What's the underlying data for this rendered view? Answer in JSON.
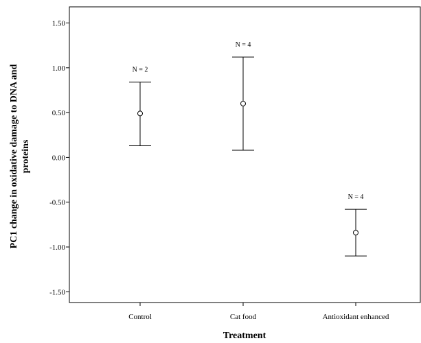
{
  "chart_data": {
    "type": "errorbar",
    "xlabel": "Treatment",
    "ylabel_lines": [
      "PC1 change in oxidative damage to DNA and",
      "proteins"
    ],
    "categories": [
      "Control",
      "Cat food",
      "Antioxidant enhanced"
    ],
    "means": [
      0.49,
      0.6,
      -0.84
    ],
    "lower": [
      0.13,
      0.08,
      -1.1
    ],
    "upper": [
      0.84,
      1.12,
      -0.58
    ],
    "n_labels": [
      "N = 2",
      "N = 4",
      "N = 4"
    ],
    "ylim": [
      -1.62,
      1.68
    ],
    "yticks": [
      1.5,
      1.0,
      0.5,
      0.0,
      -0.5,
      -1.0,
      -1.5
    ],
    "ytick_labels": [
      "1.50",
      "1.00",
      "0.50",
      "0.00",
      "-0.50",
      "-1.00",
      "-1.50"
    ],
    "grid": false,
    "legend": "none"
  }
}
